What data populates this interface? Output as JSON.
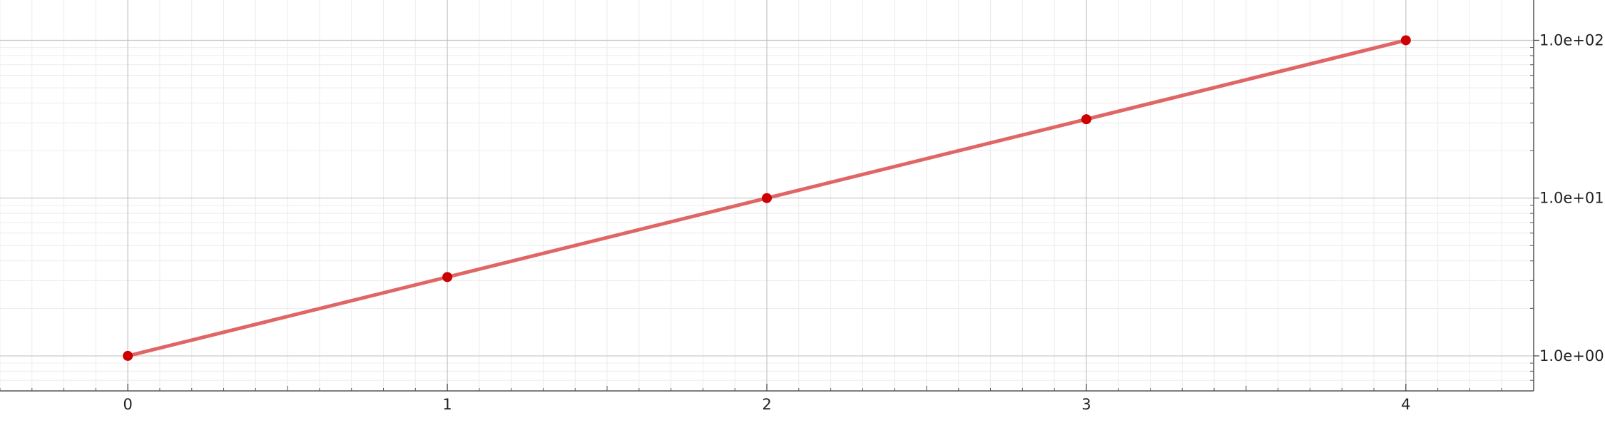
{
  "chart_data": {
    "type": "line",
    "title": "",
    "xlabel": "",
    "ylabel": "",
    "x_scale": "linear",
    "y_scale": "log",
    "xlim": [
      -0.4,
      4.4
    ],
    "ylim": [
      0.6,
      180
    ],
    "x_ticks": [
      0,
      1,
      2,
      3,
      4
    ],
    "x_tick_labels": [
      "0",
      "1",
      "2",
      "3",
      "4"
    ],
    "y_ticks": [
      1,
      10,
      100
    ],
    "y_tick_labels": [
      "1.0e+00",
      "1.0e+01",
      "1.0e+02"
    ],
    "y_axis_side": "right",
    "grid": true,
    "legend": "none",
    "series": [
      {
        "x": [
          0,
          1,
          2,
          3,
          4
        ],
        "y": [
          1,
          3.16,
          10,
          31.6,
          100
        ],
        "line_color": "#e06666",
        "marker_color": "#cc0000"
      }
    ]
  }
}
